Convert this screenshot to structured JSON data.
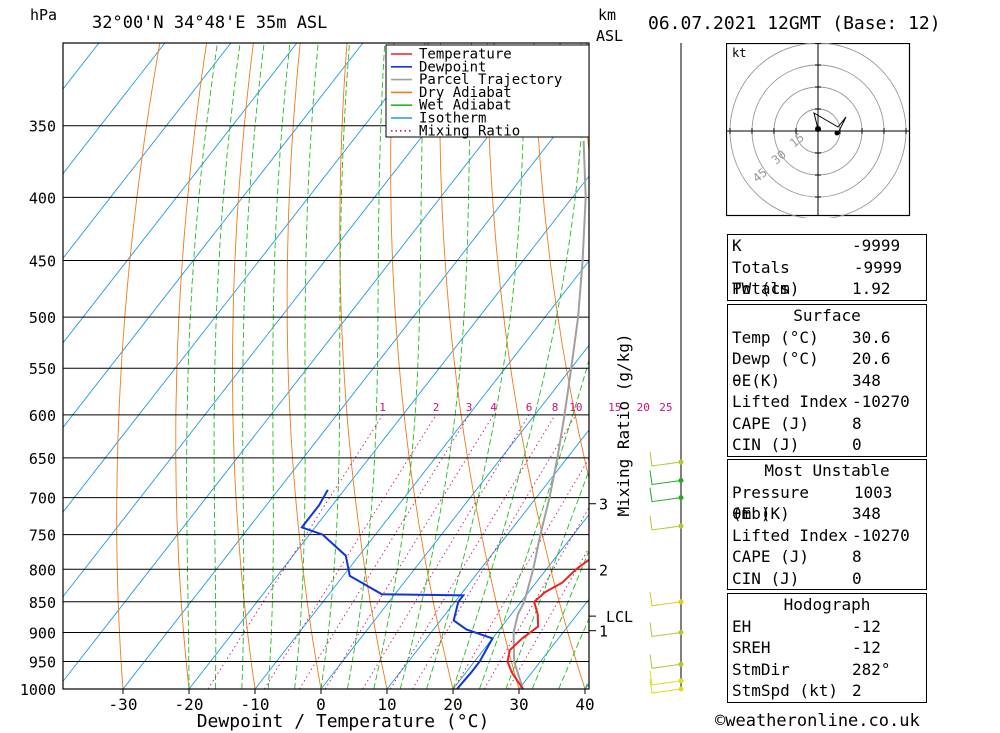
{
  "header": {
    "pressure_unit": "hPa",
    "location": "32°00'N  34°48'E  35m  ASL",
    "height_unit_km": "km",
    "height_unit_asl": "ASL",
    "date": "06.07.2021  12GMT  (Base: 12)"
  },
  "chart_data": {
    "type": "line",
    "title": "",
    "xlabel": "Dewpoint / Temperature (°C)",
    "ylabel": "hPa",
    "xlim": [
      -40,
      40
    ],
    "ylim": [
      1000,
      300
    ],
    "x_ticks": [
      -30,
      -20,
      -10,
      0,
      10,
      20,
      30,
      40
    ],
    "y_ticks": [
      350,
      400,
      450,
      500,
      550,
      600,
      650,
      700,
      750,
      800,
      850,
      900,
      950,
      1000
    ],
    "legend": [
      "Temperature",
      "Dewpoint",
      "Parcel Trajectory",
      "Dry Adiabat",
      "Wet Adiabat",
      "Isotherm",
      "Mixing Ratio"
    ],
    "legend_position": "top-right",
    "colors": {
      "temperature": "#ee2222",
      "dewpoint": "#1133dd",
      "parcel": "#a0a0a0",
      "dry_adiabat": "#f07a1a",
      "wet_adiabat": "#22bb22",
      "isotherm": "#2299dd",
      "mixing_ratio": "#cc1177"
    },
    "series": [
      {
        "name": "Temperature",
        "points": [
          [
            1000,
            30.6
          ],
          [
            970,
            27
          ],
          [
            950,
            25
          ],
          [
            930,
            24
          ],
          [
            910,
            24.5
          ],
          [
            890,
            25.5
          ],
          [
            870,
            24
          ],
          [
            850,
            22
          ],
          [
            835,
            22.5
          ],
          [
            820,
            24
          ],
          [
            800,
            24.5
          ],
          [
            750,
            27.5
          ],
          [
            700,
            26
          ],
          [
            690,
            25.5
          ]
        ]
      },
      {
        "name": "Dewpoint",
        "points": [
          [
            1000,
            20.6
          ],
          [
            970,
            20.8
          ],
          [
            950,
            20.8
          ],
          [
            910,
            20
          ],
          [
            895,
            15
          ],
          [
            880,
            12
          ],
          [
            850,
            10.5
          ],
          [
            840,
            10.5
          ],
          [
            838,
            -2
          ],
          [
            810,
            -9
          ],
          [
            780,
            -12
          ],
          [
            750,
            -18
          ],
          [
            740,
            -22
          ],
          [
            710,
            -22
          ],
          [
            690,
            -22.5
          ]
        ]
      },
      {
        "name": "Parcel Trajectory",
        "points": [
          [
            1000,
            30.6
          ],
          [
            950,
            26
          ],
          [
            900,
            22.5
          ],
          [
            870,
            21
          ],
          [
            850,
            20.5
          ],
          [
            800,
            18
          ],
          [
            750,
            15
          ],
          [
            700,
            12
          ],
          [
            650,
            8.5
          ],
          [
            600,
            4.5
          ],
          [
            550,
            0
          ],
          [
            500,
            -5
          ],
          [
            450,
            -11
          ],
          [
            400,
            -18
          ],
          [
            360,
            -25
          ]
        ]
      }
    ],
    "mixing_ratio_labels": [
      "1",
      "2",
      "3",
      "4",
      "6",
      "8",
      "10",
      "15",
      "20",
      "25"
    ],
    "mixing_ratio_values": [
      1,
      2,
      3,
      4,
      6,
      8,
      10,
      15,
      20,
      25
    ],
    "mixing_ratio_axis_label": "Mixing Ratio (g/kg)",
    "height_markers": [
      {
        "label": "3",
        "pressure": 708
      },
      {
        "label": "2",
        "pressure": 800
      },
      {
        "label": "LCL",
        "pressure": 873
      },
      {
        "label": "1",
        "pressure": 897
      }
    ]
  },
  "hodograph": {
    "unit": "kt",
    "rings": [
      "15",
      "30",
      "45"
    ]
  },
  "indices": {
    "rows": [
      {
        "label": "K",
        "value": "-9999"
      },
      {
        "label": "Totals Totals",
        "value": "-9999"
      },
      {
        "label": "PW (cm)",
        "value": "1.92"
      }
    ]
  },
  "surface": {
    "title": "Surface",
    "rows": [
      {
        "label": "Temp (°C)",
        "value": "30.6"
      },
      {
        "label": "Dewp (°C)",
        "value": "20.6"
      },
      {
        "label": "θE(K)",
        "value": "348"
      },
      {
        "label": "Lifted Index",
        "value": "-10270"
      },
      {
        "label": "CAPE (J)",
        "value": "8"
      },
      {
        "label": "CIN (J)",
        "value": "0"
      }
    ]
  },
  "most_unstable": {
    "title": "Most Unstable",
    "rows": [
      {
        "label": "Pressure (mb)",
        "value": "1003"
      },
      {
        "label": "θE (K)",
        "value": "348"
      },
      {
        "label": "Lifted Index",
        "value": "-10270"
      },
      {
        "label": "CAPE (J)",
        "value": "8"
      },
      {
        "label": "CIN (J)",
        "value": "0"
      }
    ]
  },
  "hodograph_table": {
    "title": "Hodograph",
    "rows": [
      {
        "label": "EH",
        "value": "-12"
      },
      {
        "label": "SREH",
        "value": "-12"
      },
      {
        "label": "StmDir",
        "value": "282°"
      },
      {
        "label": "StmSpd (kt)",
        "value": "2"
      }
    ]
  },
  "credit": "©weatheronline.co.uk"
}
